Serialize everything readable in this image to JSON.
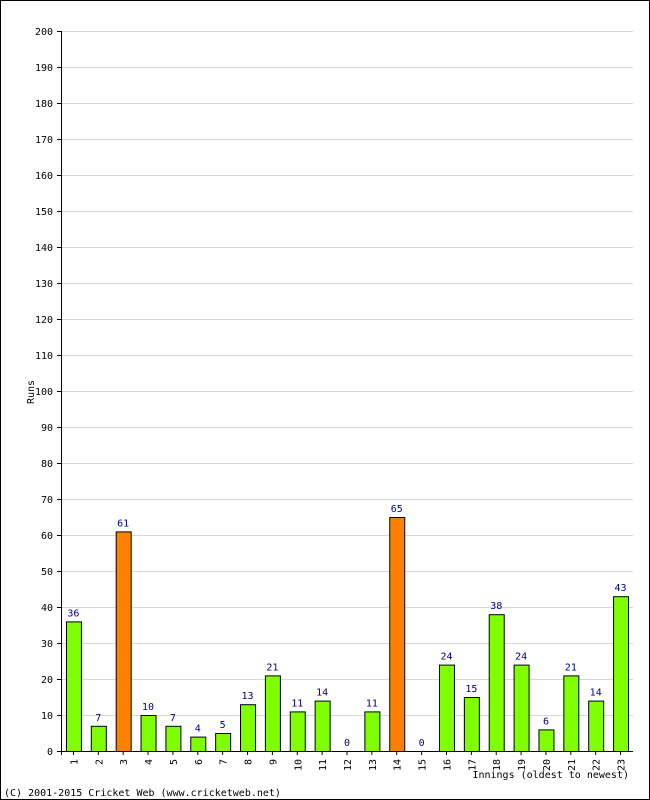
{
  "chart_data": {
    "type": "bar",
    "title": "",
    "xlabel": "Innings (oldest to newest)",
    "ylabel": "Runs",
    "ylim": [
      0,
      200
    ],
    "ytick_step": 10,
    "grid": true,
    "categories": [
      "1",
      "2",
      "3",
      "4",
      "5",
      "6",
      "7",
      "8",
      "9",
      "10",
      "11",
      "12",
      "13",
      "14",
      "15",
      "16",
      "17",
      "18",
      "19",
      "20",
      "21",
      "22",
      "23"
    ],
    "values": [
      36,
      7,
      61,
      10,
      7,
      4,
      5,
      13,
      21,
      11,
      14,
      0,
      11,
      65,
      0,
      24,
      15,
      38,
      24,
      6,
      21,
      14,
      43
    ],
    "highlight_threshold": 50,
    "colors": {
      "bar_default": "#80ff00",
      "bar_highlight": "#ff8000",
      "bar_stroke": "#000000",
      "grid": "#d8d8d8",
      "data_label": "#000080"
    }
  },
  "footer": "(C) 2001-2015 Cricket Web (www.cricketweb.net)"
}
